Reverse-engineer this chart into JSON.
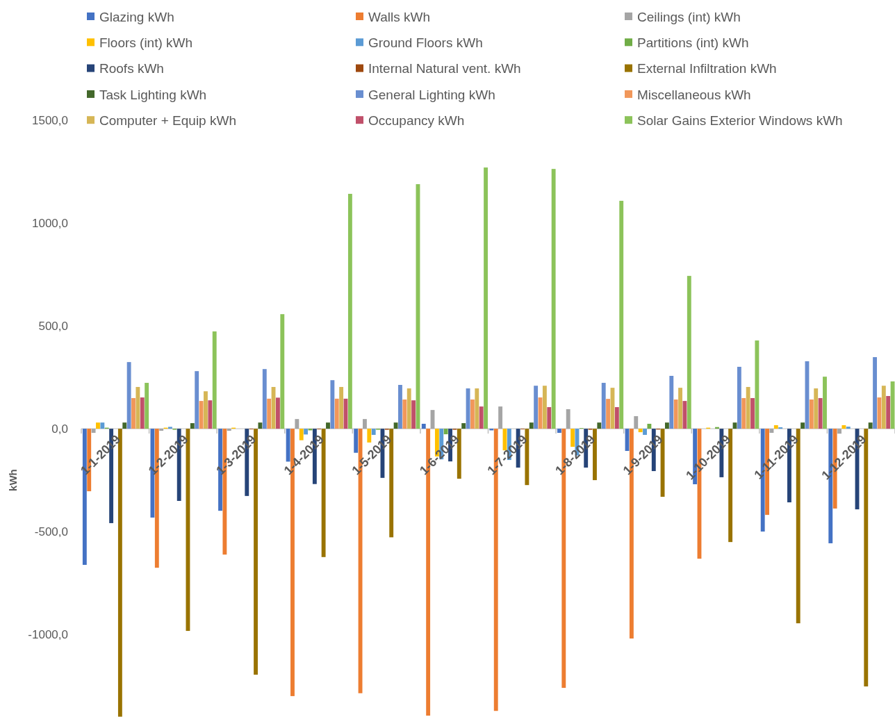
{
  "chart_data": {
    "type": "bar",
    "ylabel": "kWh",
    "legend": "top",
    "categories": [
      "1-1-2019",
      "1-2-2019",
      "1-3-2019",
      "1-4-2019",
      "1-5-2019",
      "1-6-2019",
      "1-7-2019",
      "1-8-2019",
      "1-9-2019",
      "1-10-2019",
      "1-11-2019",
      "1-12-2019"
    ],
    "ylim": [
      -1405,
      1500
    ],
    "yticks": [
      {
        "value": -1000,
        "label": "-1000,0"
      },
      {
        "value": -500,
        "label": "-500,0"
      },
      {
        "value": 0,
        "label": "0,0"
      },
      {
        "value": 500,
        "label": "500,0"
      },
      {
        "value": 1000,
        "label": "1000,0"
      },
      {
        "value": 1500,
        "label": "1500,0"
      }
    ],
    "series": [
      {
        "name": "Glazing kWh",
        "color": "#4472c4",
        "values": [
          -662,
          -432,
          -399,
          -160,
          -117,
          24,
          -8,
          -20,
          -108,
          -270,
          -500,
          -557
        ]
      },
      {
        "name": "Walls kWh",
        "color": "#ed7d31",
        "values": [
          -304,
          -676,
          -612,
          -1300,
          -1286,
          -1395,
          -1372,
          -1260,
          -1020,
          -632,
          -419,
          -388
        ]
      },
      {
        "name": "Ceilings (int) kWh",
        "color": "#a5a5a5",
        "values": [
          -20,
          -10,
          -10,
          47,
          47,
          91,
          108,
          95,
          61,
          0,
          -20,
          -24
        ]
      },
      {
        "name": "Floors (int) kWh",
        "color": "#ffc000",
        "values": [
          30,
          5,
          5,
          -56,
          -67,
          -135,
          -105,
          -88,
          -17,
          5,
          17,
          17
        ]
      },
      {
        "name": "Ground Floors kWh",
        "color": "#5b9bd5",
        "values": [
          30,
          9,
          0,
          -28,
          -30,
          -149,
          -152,
          -130,
          -30,
          0,
          7,
          10
        ]
      },
      {
        "name": "Partitions (int) kWh",
        "color": "#70ad47",
        "values": [
          5,
          -5,
          0,
          -8,
          -5,
          -27,
          0,
          3,
          24,
          8,
          0,
          0
        ]
      },
      {
        "name": "Roofs kWh",
        "color": "#264478",
        "values": [
          -459,
          -351,
          -327,
          -269,
          -239,
          -159,
          -189,
          -189,
          -206,
          -236,
          -358,
          -392
        ]
      },
      {
        "name": "Internal Natural vent. kWh",
        "color": "#9e480e",
        "values": [
          0,
          0,
          -3,
          -3,
          -5,
          -5,
          -3,
          -5,
          -4,
          0,
          0,
          0
        ]
      },
      {
        "name": "External Infiltration kWh",
        "color": "#997300",
        "values": [
          -1400,
          -983,
          -1196,
          -624,
          -528,
          -243,
          -274,
          -250,
          -331,
          -551,
          -946,
          -1253
        ]
      },
      {
        "name": "Task Lighting kWh",
        "color": "#43682b",
        "values": [
          30,
          27,
          30,
          30,
          30,
          27,
          30,
          30,
          30,
          30,
          30,
          30
        ]
      },
      {
        "name": "General Lighting kWh",
        "color": "#698ed0",
        "values": [
          324,
          280,
          290,
          236,
          213,
          196,
          209,
          223,
          257,
          301,
          328,
          348
        ]
      },
      {
        "name": "Miscellaneous kWh",
        "color": "#f1975a",
        "values": [
          149,
          135,
          146,
          146,
          142,
          142,
          152,
          145,
          142,
          149,
          142,
          152
        ]
      },
      {
        "name": "Computer + Equip kWh",
        "color": "#d6b656",
        "values": [
          203,
          182,
          203,
          203,
          196,
          196,
          209,
          199,
          199,
          203,
          196,
          209
        ]
      },
      {
        "name": "Occupancy kWh",
        "color": "#c0506a",
        "values": [
          152,
          138,
          151,
          146,
          138,
          108,
          105,
          105,
          135,
          149,
          149,
          159
        ]
      },
      {
        "name": "Solar Gains Exterior Windows kWh",
        "color": "#8cc35a",
        "values": [
          223,
          473,
          557,
          1142,
          1189,
          1270,
          1263,
          1108,
          743,
          429,
          253,
          230
        ]
      }
    ]
  }
}
